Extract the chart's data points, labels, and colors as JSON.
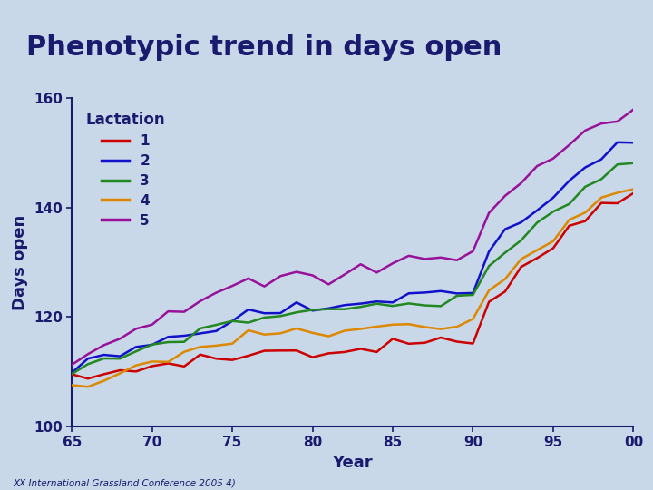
{
  "title": "Phenotypic trend in days open",
  "xlabel": "Year",
  "ylabel": "Days open",
  "legend_title": "Lactation",
  "legend_labels": [
    "1",
    "2",
    "3",
    "4",
    "5"
  ],
  "line_colors": [
    "#cc0000",
    "#1111cc",
    "#228822",
    "#dd8800",
    "#991199"
  ],
  "bg_color": "#c8d8e8",
  "title_color": "#1a1a6e",
  "axis_color": "#1a1a6e",
  "header_bar_color1": "#1a1a6e",
  "header_bar_color2": "#226622",
  "x_start": 1965,
  "x_end": 2000,
  "ylim": [
    100,
    160
  ],
  "yticks": [
    100,
    120,
    140,
    160
  ],
  "xtick_vals": [
    1965,
    1970,
    1975,
    1980,
    1985,
    1990,
    1995,
    2000
  ],
  "xtick_labels": [
    "65",
    "70",
    "75",
    "80",
    "85",
    "90",
    "95",
    "00"
  ],
  "footer_text": "XX International Grassland Conference 2005 4)",
  "lactation_data": {
    "1": [
      108.5,
      109.0,
      109.5,
      110.0,
      110.5,
      111.0,
      111.5,
      112.0,
      112.5,
      112.0,
      112.5,
      113.0,
      113.5,
      114.0,
      114.0,
      113.5,
      113.0,
      113.5,
      114.0,
      114.5,
      115.0,
      115.0,
      115.5,
      115.0,
      115.5,
      116.0,
      123.0,
      126.0,
      128.5,
      131.0,
      133.0,
      136.0,
      138.5,
      140.5,
      142.0,
      143.0
    ],
    "2": [
      110.5,
      111.5,
      112.0,
      113.0,
      114.0,
      115.0,
      116.0,
      117.0,
      118.0,
      118.5,
      119.0,
      120.0,
      120.5,
      121.0,
      121.5,
      121.0,
      121.5,
      122.0,
      122.5,
      123.0,
      123.5,
      124.0,
      124.5,
      124.0,
      124.5,
      125.5,
      132.0,
      135.0,
      137.5,
      140.0,
      142.5,
      145.5,
      147.5,
      149.5,
      151.0,
      152.0
    ],
    "3": [
      109.5,
      110.5,
      111.5,
      112.5,
      113.5,
      114.5,
      115.5,
      116.5,
      117.5,
      118.0,
      119.0,
      119.5,
      120.0,
      120.5,
      121.0,
      120.5,
      120.5,
      121.0,
      121.5,
      122.0,
      122.0,
      122.5,
      122.5,
      122.0,
      122.5,
      123.5,
      129.5,
      132.0,
      134.5,
      137.0,
      139.0,
      141.5,
      143.5,
      145.5,
      147.0,
      148.0
    ],
    "4": [
      106.5,
      107.5,
      108.5,
      109.5,
      110.5,
      111.5,
      112.5,
      113.5,
      114.5,
      115.0,
      115.5,
      116.5,
      117.0,
      117.5,
      117.5,
      117.0,
      116.5,
      117.0,
      117.5,
      118.0,
      118.0,
      118.5,
      118.5,
      118.0,
      118.5,
      119.5,
      125.5,
      128.0,
      130.5,
      133.0,
      135.0,
      137.5,
      139.5,
      141.5,
      143.0,
      144.0
    ],
    "5": [
      112.0,
      113.5,
      115.0,
      116.5,
      118.0,
      119.5,
      121.0,
      122.0,
      123.0,
      124.0,
      125.0,
      126.0,
      126.5,
      127.0,
      127.5,
      127.0,
      126.5,
      127.5,
      128.5,
      129.0,
      129.5,
      130.5,
      131.0,
      130.5,
      131.0,
      132.5,
      139.5,
      142.0,
      144.5,
      147.0,
      149.5,
      151.5,
      153.5,
      155.0,
      156.5,
      157.5
    ]
  }
}
